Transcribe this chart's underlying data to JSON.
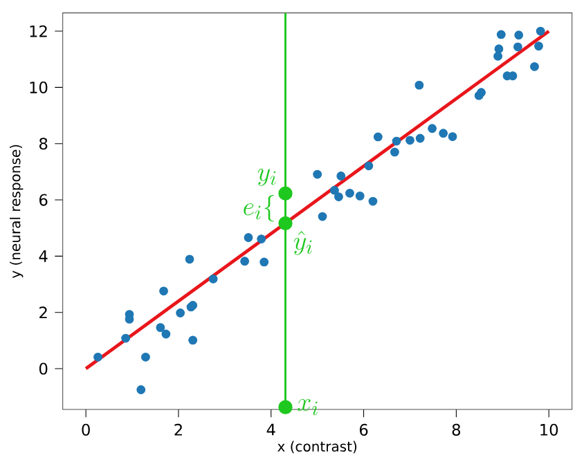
{
  "chart_data": {
    "type": "scatter",
    "xlabel": "x (contrast)",
    "ylabel": "y (neural response)",
    "xlim": [
      -0.5,
      10.5
    ],
    "ylim": [
      -1.45,
      12.65
    ],
    "xticks": [
      0,
      2,
      4,
      6,
      8,
      10
    ],
    "yticks": [
      0,
      2,
      4,
      6,
      8,
      10,
      12
    ],
    "grid": false,
    "series": [
      {
        "marker": "circle",
        "color": "#1f77b4",
        "x": [
          0.26,
          0.86,
          0.94,
          0.94,
          1.29,
          1.19,
          1.61,
          1.68,
          1.73,
          2.04,
          2.24,
          2.27,
          2.31,
          2.31,
          2.75,
          3.43,
          3.51,
          3.79,
          3.85,
          5.0,
          5.11,
          5.37,
          5.46,
          5.51,
          5.7,
          5.92,
          6.11,
          6.2,
          6.31,
          6.67,
          6.71,
          7.0,
          7.2,
          7.22,
          7.48,
          7.72,
          7.92,
          8.49,
          8.54,
          8.9,
          8.92,
          8.97,
          9.1,
          9.22,
          9.33,
          9.35,
          9.69,
          9.78,
          9.82
        ],
        "values": [
          0.41,
          1.08,
          1.93,
          1.76,
          0.41,
          -0.75,
          1.46,
          2.76,
          1.23,
          1.98,
          3.89,
          2.19,
          2.25,
          1.01,
          3.19,
          3.82,
          4.66,
          4.61,
          3.79,
          6.91,
          5.41,
          6.34,
          6.11,
          6.85,
          6.24,
          6.14,
          7.21,
          5.95,
          8.24,
          7.7,
          8.09,
          8.12,
          10.08,
          8.19,
          8.54,
          8.37,
          8.25,
          9.71,
          9.82,
          11.11,
          11.37,
          11.88,
          10.41,
          10.41,
          11.44,
          11.86,
          10.74,
          11.47,
          12.0
        ]
      },
      {
        "type": "line",
        "marker": "none",
        "color": "#e8161b",
        "x": [
          0,
          10
        ],
        "values": [
          0,
          12
        ]
      },
      {
        "marker": "circle",
        "color": "#1ec81e",
        "x": [
          4.31,
          4.31,
          4.31
        ],
        "values": [
          6.23,
          5.17,
          -1.37
        ]
      }
    ],
    "ref_lines": [
      {
        "axis": "x",
        "value": 4.31,
        "color": "#1ec81e"
      }
    ],
    "annotations": [
      "y_i",
      "e_i\\{",
      "\\hat{y}_i",
      "x_i"
    ]
  }
}
